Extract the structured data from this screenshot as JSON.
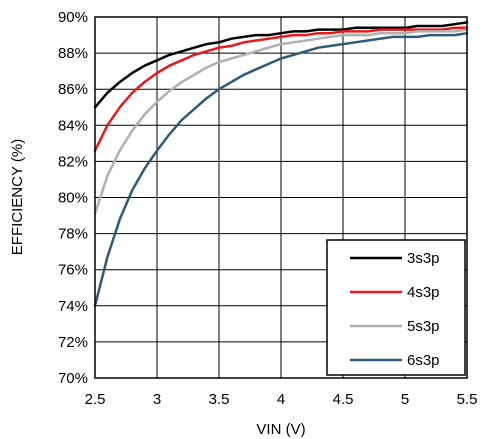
{
  "chart_data": {
    "type": "line",
    "title": "",
    "xlabel": "VIN (V)",
    "ylabel": "EFFICIENCY (%)",
    "xlim": [
      2.5,
      5.5
    ],
    "ylim": [
      70,
      90
    ],
    "x_ticks": [
      "2.5",
      "3",
      "3.5",
      "4",
      "4.5",
      "5",
      "5.5"
    ],
    "x_tick_values": [
      2.5,
      3,
      3.5,
      4,
      4.5,
      5,
      5.5
    ],
    "y_ticks": [
      "70%",
      "72%",
      "74%",
      "76%",
      "78%",
      "80%",
      "82%",
      "84%",
      "86%",
      "88%",
      "90%"
    ],
    "y_tick_values": [
      70,
      72,
      74,
      76,
      78,
      80,
      82,
      84,
      86,
      88,
      90
    ],
    "grid": true,
    "legend_position": "bottom-right",
    "series": [
      {
        "name": "3s3p",
        "color": "#000000",
        "x": [
          2.5,
          2.6,
          2.7,
          2.8,
          2.9,
          3.0,
          3.1,
          3.2,
          3.3,
          3.4,
          3.5,
          3.6,
          3.7,
          3.8,
          3.9,
          4.0,
          4.1,
          4.2,
          4.3,
          4.4,
          4.5,
          4.6,
          4.7,
          4.8,
          4.9,
          5.0,
          5.1,
          5.2,
          5.3,
          5.4,
          5.5
        ],
        "y": [
          85.0,
          85.8,
          86.4,
          86.9,
          87.3,
          87.6,
          87.9,
          88.1,
          88.3,
          88.5,
          88.6,
          88.8,
          88.9,
          89.0,
          89.0,
          89.1,
          89.2,
          89.2,
          89.3,
          89.3,
          89.3,
          89.4,
          89.4,
          89.4,
          89.4,
          89.4,
          89.5,
          89.5,
          89.5,
          89.6,
          89.7
        ]
      },
      {
        "name": "4s3p",
        "color": "#e8191c",
        "x": [
          2.5,
          2.6,
          2.7,
          2.8,
          2.9,
          3.0,
          3.1,
          3.2,
          3.3,
          3.4,
          3.5,
          3.6,
          3.7,
          3.8,
          3.9,
          4.0,
          4.1,
          4.2,
          4.3,
          4.4,
          4.5,
          4.6,
          4.7,
          4.8,
          4.9,
          5.0,
          5.1,
          5.2,
          5.3,
          5.4,
          5.5
        ],
        "y": [
          82.6,
          84.0,
          85.0,
          85.8,
          86.4,
          86.9,
          87.3,
          87.6,
          87.9,
          88.1,
          88.3,
          88.4,
          88.6,
          88.7,
          88.8,
          88.9,
          89.0,
          89.0,
          89.1,
          89.1,
          89.2,
          89.2,
          89.2,
          89.3,
          89.3,
          89.3,
          89.3,
          89.3,
          89.3,
          89.4,
          89.4
        ]
      },
      {
        "name": "5s3p",
        "color": "#b0b0b0",
        "x": [
          2.5,
          2.6,
          2.7,
          2.8,
          2.9,
          3.0,
          3.1,
          3.2,
          3.3,
          3.4,
          3.5,
          3.6,
          3.7,
          3.8,
          3.9,
          4.0,
          4.1,
          4.2,
          4.3,
          4.4,
          4.5,
          4.6,
          4.7,
          4.8,
          4.9,
          5.0,
          5.1,
          5.2,
          5.3,
          5.4,
          5.5
        ],
        "y": [
          79.1,
          81.2,
          82.6,
          83.7,
          84.6,
          85.3,
          85.9,
          86.4,
          86.8,
          87.2,
          87.5,
          87.7,
          87.9,
          88.1,
          88.3,
          88.5,
          88.6,
          88.7,
          88.8,
          88.9,
          89.0,
          89.0,
          89.0,
          89.1,
          89.1,
          89.1,
          89.2,
          89.2,
          89.2,
          89.2,
          89.3
        ]
      },
      {
        "name": "6s3p",
        "color": "#2e5a78",
        "x": [
          2.5,
          2.6,
          2.7,
          2.8,
          2.9,
          3.0,
          3.1,
          3.2,
          3.3,
          3.4,
          3.5,
          3.6,
          3.7,
          3.8,
          3.9,
          4.0,
          4.1,
          4.2,
          4.3,
          4.4,
          4.5,
          4.6,
          4.7,
          4.8,
          4.9,
          5.0,
          5.1,
          5.2,
          5.3,
          5.4,
          5.5
        ],
        "y": [
          74.0,
          76.7,
          78.8,
          80.4,
          81.6,
          82.6,
          83.5,
          84.3,
          84.9,
          85.5,
          86.0,
          86.4,
          86.8,
          87.1,
          87.4,
          87.7,
          87.9,
          88.1,
          88.3,
          88.4,
          88.5,
          88.6,
          88.7,
          88.8,
          88.9,
          88.9,
          88.9,
          89.0,
          89.0,
          89.0,
          89.1
        ]
      }
    ]
  }
}
